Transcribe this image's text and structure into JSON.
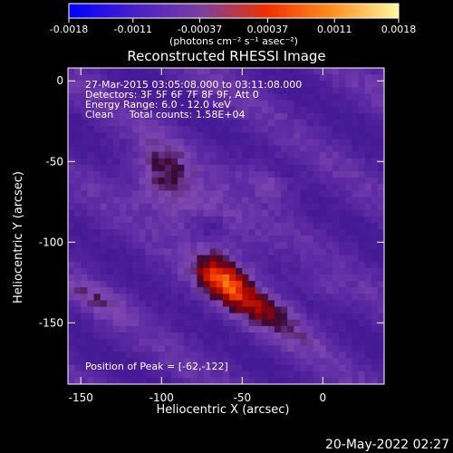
{
  "chart_data": {
    "type": "heatmap",
    "title": "Reconstructed RHESSI Image",
    "xlabel": "Heliocentric X (arcsec)",
    "ylabel": "Heliocentric Y (arcsec)",
    "xlim": [
      -158,
      38
    ],
    "ylim": [
      -188,
      8
    ],
    "x_ticks": [
      -150,
      -100,
      -50,
      0
    ],
    "y_ticks": [
      0,
      -50,
      -100,
      -150
    ],
    "colorbar": {
      "min": -0.0018,
      "max": 0.0018,
      "ticks": [
        "-0.0018",
        "-0.0011",
        "-0.00037",
        "0.00037",
        "0.0011",
        "0.0018"
      ],
      "unit_label": "(photons cm⁻² s⁻¹ asec⁻²)",
      "colors": [
        "#0000ff",
        "#4a1fc8",
        "#7a3fa0",
        "#f03000",
        "#ff9020",
        "#fff8a0"
      ]
    },
    "annotations": [
      "27-Mar-2015 03:05:08.000 to 03:11:08.000",
      "Detectors: 3F 5F 6F 7F 8F 9F, Att 0",
      "Energy Range: 6.0 - 12.0 keV",
      "Clean     Total counts: 1.58E+04"
    ],
    "peak": {
      "label": "Position of Peak = [-62,-122]",
      "x": -62,
      "y": -122
    },
    "grid": false
  },
  "footer": {
    "timestamp": "20-May-2022 02:27"
  }
}
